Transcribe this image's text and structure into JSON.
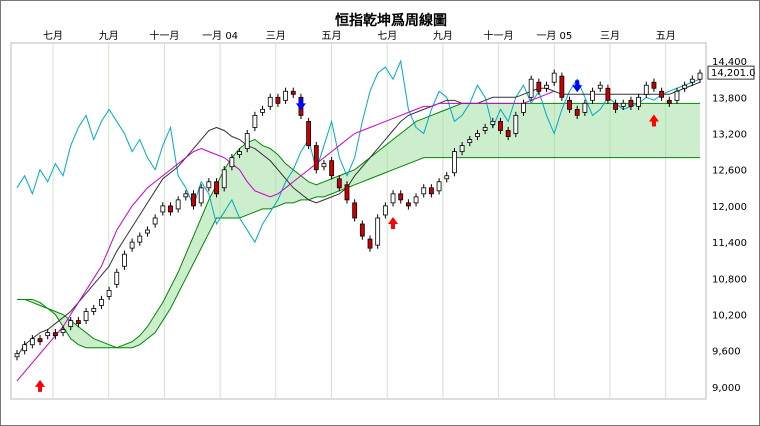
{
  "chart_data": {
    "type": "candlestick",
    "title": "恒指乾坤爲周線圖",
    "x_labels": [
      "七月",
      "九月",
      "十一月",
      "一月 04",
      "三月",
      "五月",
      "七月",
      "九月",
      "十一月",
      "一月 05",
      "三月",
      "五月"
    ],
    "y_ticks": [
      9000,
      9600,
      10200,
      10800,
      11400,
      12000,
      12600,
      13200,
      13800,
      14400
    ],
    "ylim": [
      8800,
      14700
    ],
    "last_price_label": "14,201.0",
    "grid": "vertical monthly lines",
    "colors": {
      "tenkan": "#00aacc",
      "kijun": "#333333",
      "senkou": "#008800",
      "cloud": "#99dd99",
      "lagging": "#cc00cc",
      "candle_up": "#000000",
      "candle_down": "#cc0000",
      "arrow_up": "#ff0000",
      "arrow_down": "#0000ff"
    },
    "series": {
      "close": [
        9550,
        9700,
        9800,
        9750,
        9900,
        9850,
        9950,
        10100,
        10050,
        10250,
        10300,
        10450,
        10600,
        10900,
        11200,
        11400,
        11500,
        11600,
        11800,
        12000,
        11900,
        12100,
        12200,
        12000,
        12300,
        12400,
        12200,
        12600,
        12800,
        12900,
        13200,
        13500,
        13600,
        13800,
        13700,
        13900,
        13850,
        13500,
        13000,
        12600,
        12700,
        12500,
        12300,
        12100,
        11800,
        11500,
        11300,
        11800,
        12000,
        12200,
        12100,
        12000,
        12150,
        12300,
        12200,
        12400,
        12500,
        12900,
        13000,
        13100,
        13200,
        13300,
        13400,
        13250,
        13150,
        13500,
        13700,
        14100,
        13900,
        14000,
        14200,
        13800,
        13600,
        13500,
        13700,
        13900,
        14000,
        13750,
        13600,
        13700,
        13650,
        13800,
        14000,
        13950,
        13800,
        13700,
        13900,
        14000,
        14100,
        14201
      ],
      "open": [
        9500,
        9600,
        9700,
        9800,
        9850,
        9900,
        9900,
        10000,
        10100,
        10100,
        10250,
        10350,
        10500,
        10700,
        11000,
        11300,
        11400,
        11550,
        11700,
        11900,
        12000,
        11950,
        12150,
        12200,
        12050,
        12300,
        12400,
        12300,
        12650,
        12850,
        12950,
        13300,
        13550,
        13650,
        13800,
        13750,
        13900,
        13800,
        13400,
        13000,
        12650,
        12750,
        12450,
        12350,
        12050,
        11700,
        11450,
        11350,
        11850,
        12050,
        12200,
        12050,
        12050,
        12200,
        12300,
        12250,
        12450,
        12550,
        12900,
        13050,
        13150,
        13250,
        13350,
        13400,
        13250,
        13200,
        13550,
        13800,
        14050,
        13950,
        14050,
        14150,
        13750,
        13600,
        13550,
        13750,
        13950,
        13950,
        13700,
        13650,
        13750,
        13650,
        13850,
        14050,
        13900,
        13750,
        13750,
        13950,
        14050,
        14100
      ],
      "tenkan": [
        12300,
        12500,
        12200,
        12600,
        12400,
        12700,
        12500,
        13000,
        13300,
        13500,
        13100,
        13400,
        13600,
        13400,
        13200,
        12900,
        13100,
        12800,
        12600,
        13000,
        13300,
        12500,
        12300,
        12000,
        12400,
        12200,
        11700,
        11900,
        12100,
        11800,
        11600,
        11400,
        11700,
        11900,
        12100,
        12400,
        12600,
        12900,
        13100,
        12600,
        13000,
        13400,
        12800,
        12500,
        12800,
        13400,
        13900,
        14200,
        14300,
        14100,
        14400,
        13600,
        13300,
        13200,
        13600,
        13900,
        13800,
        13400,
        13500,
        13700,
        14000,
        13800,
        13300,
        13600,
        13400,
        13800,
        14000,
        13700,
        13900,
        13500,
        13200,
        13600,
        13900,
        14100,
        13800,
        13500,
        13600,
        13800,
        13700,
        13600,
        13650,
        13700,
        13800,
        13750,
        13850,
        13900,
        13950,
        14000,
        14050,
        14100
      ],
      "kijun": [
        9500,
        9700,
        9800,
        9900,
        9950,
        10050,
        10150,
        10250,
        10400,
        10550,
        10700,
        10850,
        11000,
        11250,
        11450,
        11650,
        11850,
        12050,
        12250,
        12450,
        12550,
        12650,
        12800,
        12950,
        13100,
        13250,
        13300,
        13250,
        13150,
        13100,
        13000,
        12950,
        12850,
        12750,
        12600,
        12450,
        12300,
        12200,
        12100,
        12050,
        12100,
        12150,
        12200,
        12300,
        12500,
        12650,
        12800,
        12950,
        13100,
        13250,
        13400,
        13500,
        13550,
        13600,
        13650,
        13700,
        13750,
        13750,
        13700,
        13700,
        13700,
        13750,
        13800,
        13800,
        13800,
        13800,
        13850,
        13900,
        13950,
        13950,
        13900,
        13850,
        13850,
        13850,
        13850,
        13850,
        13850,
        13850,
        13850,
        13850,
        13850,
        13850,
        13850,
        13850,
        13850,
        13850,
        13900,
        13950,
        14000,
        14050
      ],
      "senkou_a": [
        10450,
        10450,
        10400,
        10350,
        10300,
        10250,
        10200,
        10100,
        10000,
        9900,
        9800,
        9750,
        9700,
        9650,
        9700,
        9750,
        9850,
        10000,
        10200,
        10400,
        10650,
        10900,
        11200,
        11500,
        11800,
        12100,
        12350,
        12600,
        12800,
        12950,
        13050,
        13100,
        13000,
        12950,
        12850,
        12700,
        12600,
        12500,
        12400,
        12350,
        12400,
        12450,
        12500,
        12550,
        12600,
        12700,
        12800,
        12900,
        13000,
        13100,
        13200,
        13300,
        13400,
        13450,
        13500,
        13550,
        13600,
        13650,
        13700,
        13700,
        13700,
        13700,
        13700,
        13700,
        13700,
        13700,
        13700,
        13700,
        13700,
        13700,
        13700,
        13700,
        13700,
        13700,
        13700,
        13700,
        13700,
        13700,
        13700,
        13700,
        13700,
        13700,
        13700,
        13700,
        13700,
        13700,
        13700,
        13700,
        13700,
        13700
      ],
      "senkou_b": [
        10450,
        10450,
        10450,
        10400,
        10300,
        10200,
        10000,
        9800,
        9700,
        9650,
        9650,
        9650,
        9650,
        9650,
        9650,
        9650,
        9700,
        9800,
        9900,
        10100,
        10300,
        10550,
        10800,
        11050,
        11300,
        11550,
        11800,
        11800,
        11800,
        11800,
        11850,
        11900,
        11950,
        11950,
        12000,
        12050,
        12050,
        12100,
        12100,
        12150,
        12150,
        12200,
        12250,
        12300,
        12350,
        12400,
        12450,
        12500,
        12550,
        12600,
        12650,
        12700,
        12750,
        12800,
        12800,
        12800,
        12800,
        12800,
        12800,
        12800,
        12800,
        12800,
        12800,
        12800,
        12800,
        12800,
        12800,
        12800,
        12800,
        12800,
        12800,
        12800,
        12800,
        12800,
        12800,
        12800,
        12800,
        12800,
        12800,
        12800,
        12800,
        12800,
        12800,
        12800,
        12800,
        12800,
        12800,
        12800,
        12800,
        12800
      ],
      "lagging": [
        9100,
        9250,
        9400,
        9550,
        9700,
        9850,
        10000,
        10200,
        10400,
        10600,
        10800,
        11000,
        11300,
        11600,
        11800,
        12000,
        12150,
        12300,
        12400,
        12500,
        12600,
        12700,
        12800,
        12900,
        12950,
        12900,
        12850,
        12800,
        12700,
        12600,
        12400,
        12250,
        12200,
        12150,
        12200,
        12300,
        12400,
        12500,
        12600,
        12700,
        12800,
        12900,
        13000,
        13100,
        13200,
        13250,
        13300,
        13350,
        13400,
        13450,
        13500,
        13550,
        13600,
        13650,
        13650,
        13700,
        13700,
        13700,
        13700,
        13700,
        13700,
        13700,
        13700,
        13700,
        13700,
        13700,
        13700,
        13750,
        13800,
        13850,
        13900
      ]
    },
    "annotations": [
      {
        "type": "arrow_up",
        "x_index": 3,
        "y": 9000
      },
      {
        "type": "arrow_down",
        "x_index": 37,
        "y": 13700
      },
      {
        "type": "arrow_up",
        "x_index": 49,
        "y": 11700
      },
      {
        "type": "arrow_down",
        "x_index": 73,
        "y": 14000
      },
      {
        "type": "arrow_up",
        "x_index": 83,
        "y": 13400
      }
    ]
  }
}
